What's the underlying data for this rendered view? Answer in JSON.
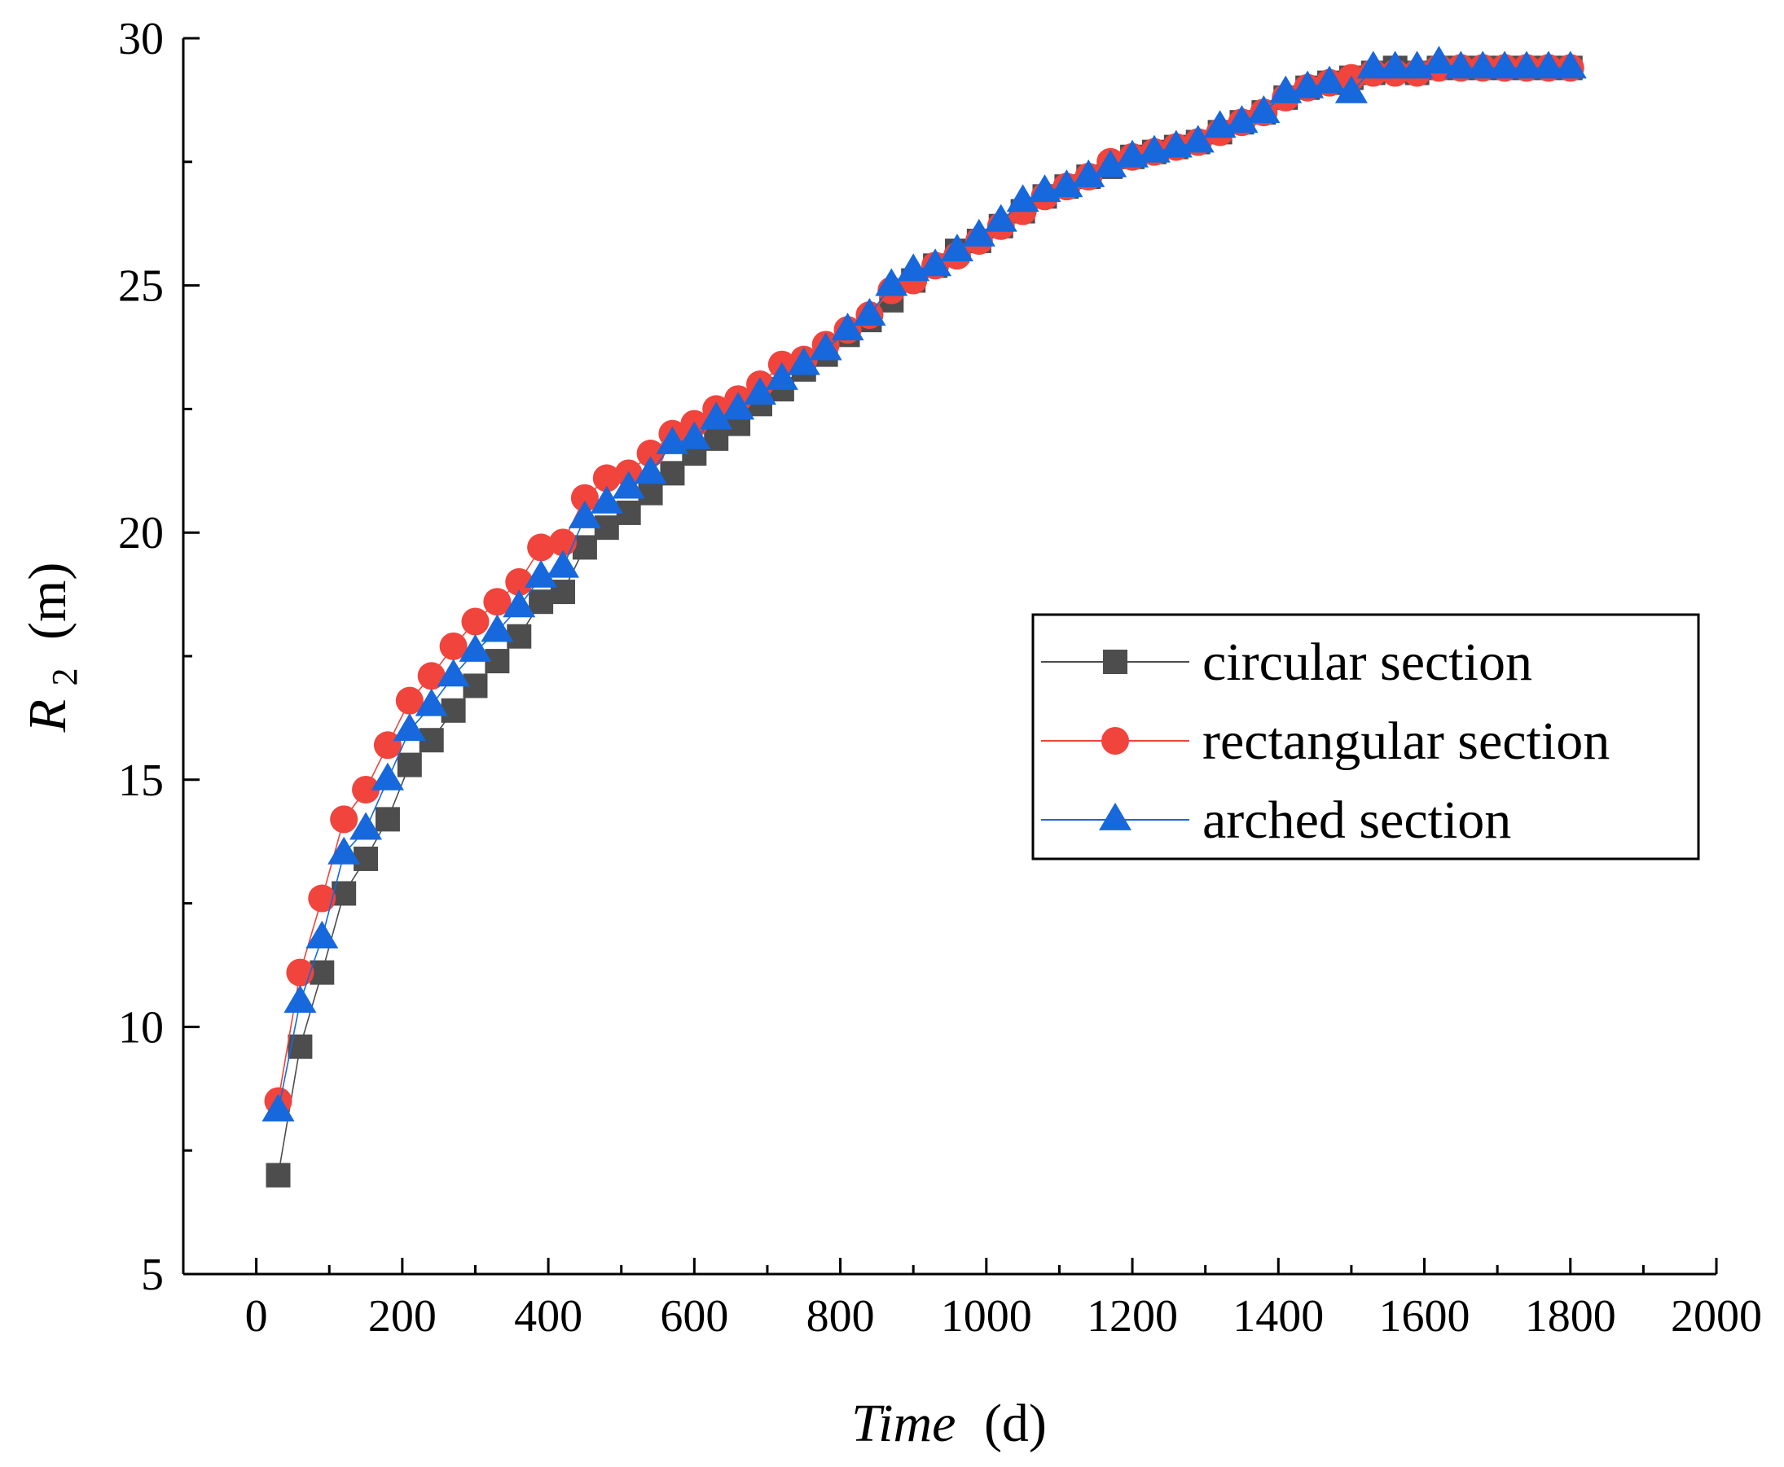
{
  "chart_data": {
    "type": "line",
    "title": "",
    "xlabel": {
      "italic": "Time",
      "unit": "(d)"
    },
    "ylabel": {
      "symbol": "R",
      "subscript": "2",
      "unit": "(m)"
    },
    "xlim": [
      -100,
      2000
    ],
    "ylim": [
      5,
      30
    ],
    "xticks": [
      0,
      200,
      400,
      600,
      800,
      1000,
      1200,
      1400,
      1600,
      1800,
      2000
    ],
    "yticks": [
      5,
      10,
      15,
      20,
      25,
      30
    ],
    "grid": false,
    "legend_position": "center-right",
    "series": [
      {
        "name": "circular section",
        "color": "#4d4d4d",
        "marker": "square",
        "x": [
          30,
          60,
          90,
          120,
          150,
          180,
          210,
          240,
          270,
          300,
          330,
          360,
          390,
          420,
          450,
          480,
          510,
          540,
          570,
          600,
          630,
          660,
          690,
          720,
          750,
          780,
          810,
          840,
          870,
          900,
          930,
          960,
          990,
          1020,
          1050,
          1080,
          1110,
          1140,
          1170,
          1200,
          1230,
          1260,
          1290,
          1320,
          1350,
          1380,
          1410,
          1440,
          1470,
          1500,
          1530,
          1560,
          1590,
          1620,
          1650,
          1680,
          1710,
          1740,
          1770,
          1800
        ],
        "values": [
          7.0,
          9.6,
          11.1,
          12.7,
          13.4,
          14.2,
          15.3,
          15.8,
          16.4,
          16.9,
          17.4,
          17.9,
          18.6,
          18.8,
          19.7,
          20.1,
          20.4,
          20.8,
          21.2,
          21.6,
          21.9,
          22.2,
          22.6,
          22.9,
          23.3,
          23.6,
          24.0,
          24.3,
          24.7,
          25.1,
          25.4,
          25.7,
          25.9,
          26.2,
          26.5,
          26.8,
          27.0,
          27.2,
          27.4,
          27.6,
          27.7,
          27.8,
          27.9,
          28.1,
          28.3,
          28.5,
          28.8,
          29.0,
          29.1,
          29.2,
          29.3,
          29.4,
          29.3,
          29.4,
          29.4,
          29.4,
          29.4,
          29.4,
          29.4,
          29.4
        ]
      },
      {
        "name": "rectangular section",
        "color": "#f0443c",
        "marker": "circle",
        "x": [
          30,
          60,
          90,
          120,
          150,
          180,
          210,
          240,
          270,
          300,
          330,
          360,
          390,
          420,
          450,
          480,
          510,
          540,
          570,
          600,
          630,
          660,
          690,
          720,
          750,
          780,
          810,
          840,
          870,
          900,
          930,
          960,
          990,
          1020,
          1050,
          1080,
          1110,
          1140,
          1170,
          1200,
          1230,
          1260,
          1290,
          1320,
          1350,
          1380,
          1410,
          1440,
          1470,
          1500,
          1530,
          1560,
          1590,
          1620,
          1650,
          1680,
          1710,
          1740,
          1770,
          1800
        ],
        "values": [
          8.5,
          11.1,
          12.6,
          14.2,
          14.8,
          15.7,
          16.6,
          17.1,
          17.7,
          18.2,
          18.6,
          19.0,
          19.7,
          19.8,
          20.7,
          21.1,
          21.2,
          21.6,
          22.0,
          22.2,
          22.5,
          22.7,
          23.0,
          23.4,
          23.5,
          23.8,
          24.1,
          24.4,
          24.9,
          25.1,
          25.4,
          25.6,
          25.9,
          26.2,
          26.5,
          26.8,
          27.0,
          27.2,
          27.5,
          27.6,
          27.7,
          27.8,
          27.9,
          28.1,
          28.3,
          28.5,
          28.8,
          29.0,
          29.1,
          29.2,
          29.3,
          29.3,
          29.3,
          29.4,
          29.4,
          29.4,
          29.4,
          29.4,
          29.4,
          29.4
        ]
      },
      {
        "name": "arched section",
        "color": "#1668dc",
        "marker": "triangle",
        "x": [
          30,
          60,
          90,
          120,
          150,
          180,
          210,
          240,
          270,
          300,
          330,
          360,
          390,
          420,
          450,
          480,
          510,
          540,
          570,
          600,
          630,
          660,
          690,
          720,
          750,
          780,
          810,
          840,
          870,
          900,
          930,
          960,
          990,
          1020,
          1050,
          1080,
          1110,
          1140,
          1170,
          1200,
          1230,
          1260,
          1290,
          1320,
          1350,
          1380,
          1410,
          1440,
          1470,
          1500,
          1530,
          1560,
          1590,
          1620,
          1650,
          1680,
          1710,
          1740,
          1770,
          1800
        ],
        "values": [
          8.3,
          10.5,
          11.8,
          13.5,
          14.0,
          15.0,
          16.0,
          16.5,
          17.1,
          17.6,
          18.0,
          18.5,
          19.1,
          19.3,
          20.3,
          20.6,
          20.9,
          21.2,
          21.8,
          21.9,
          22.3,
          22.5,
          22.8,
          23.1,
          23.4,
          23.7,
          24.1,
          24.4,
          25.0,
          25.3,
          25.4,
          25.7,
          26.0,
          26.3,
          26.7,
          26.9,
          27.0,
          27.2,
          27.4,
          27.6,
          27.7,
          27.8,
          27.9,
          28.2,
          28.3,
          28.5,
          28.9,
          29.0,
          29.1,
          28.9,
          29.4,
          29.4,
          29.4,
          29.5,
          29.4,
          29.4,
          29.4,
          29.4,
          29.4,
          29.4
        ]
      }
    ]
  }
}
